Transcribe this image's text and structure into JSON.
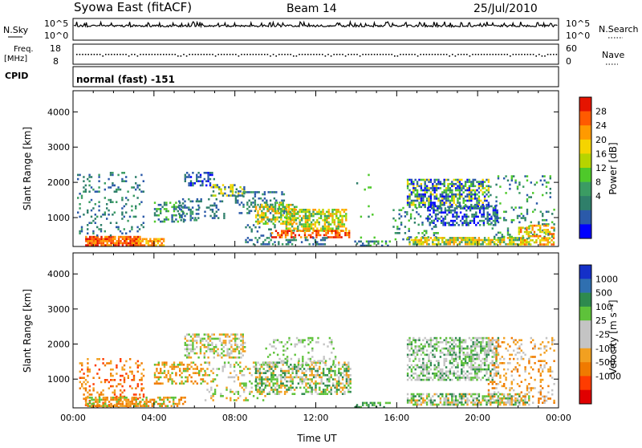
{
  "header": {
    "station": "Syowa East (fitACF)",
    "beam": "Beam 14",
    "date": "25/Jul/2010"
  },
  "status_panels": {
    "nsky_label": "N.Sky",
    "nsky_ticks": [
      "10^5",
      "10^0"
    ],
    "nsearch_label": "N.Search",
    "nsearch_ticks": [
      "10^5",
      "10^0"
    ],
    "freq_label_1": "Freq.",
    "freq_label_2": "[MHz]",
    "freq_ticks": [
      "18",
      "8"
    ],
    "nave_label": "Nave",
    "nave_ticks": [
      "60",
      "0"
    ],
    "cpid_label": "CPID",
    "cpid_value": "normal (fast) -151"
  },
  "chart_data": [
    {
      "type": "heatmap",
      "name": "power",
      "ylabel": "Slant Range [km]",
      "y_ticks": [
        "4000",
        "3000",
        "2000",
        "1000"
      ],
      "y_tick_values": [
        4000,
        3000,
        2000,
        1000
      ],
      "ylim": [
        180,
        4600
      ],
      "xlim_hours": [
        0,
        24
      ],
      "colorbar_label": "Power [dB]",
      "colorbar_ticks": [
        "28",
        "24",
        "20",
        "16",
        "12",
        "8",
        "4"
      ],
      "colorbar_colors": [
        "#e51400",
        "#ff5a00",
        "#ff9a00",
        "#f5d400",
        "#b6d400",
        "#4ec92a",
        "#3b9c63",
        "#2f7f6a",
        "#2b5aa9",
        "#0000ff"
      ],
      "regions": [
        {
          "t0": 0.6,
          "t1": 3.3,
          "r0": 230,
          "r1": 480,
          "c": [
            0,
            1,
            2
          ],
          "d": 0.9
        },
        {
          "t0": 0.2,
          "t1": 3.5,
          "r0": 480,
          "r1": 2300,
          "c": [
            7,
            8,
            6
          ],
          "d": 0.14
        },
        {
          "t0": 3.2,
          "t1": 4.5,
          "r0": 230,
          "r1": 420,
          "c": [
            1,
            2,
            3
          ],
          "d": 0.75
        },
        {
          "t0": 4.0,
          "t1": 5.5,
          "r0": 900,
          "r1": 1450,
          "c": [
            8,
            7,
            5
          ],
          "d": 0.42
        },
        {
          "t0": 5.5,
          "t1": 7.0,
          "r0": 1900,
          "r1": 2300,
          "c": [
            8,
            7,
            9
          ],
          "d": 0.5
        },
        {
          "t0": 5.2,
          "t1": 6.2,
          "r0": 900,
          "r1": 1550,
          "c": [
            8,
            7,
            6
          ],
          "d": 0.4
        },
        {
          "t0": 6.8,
          "t1": 8.5,
          "r0": 1600,
          "r1": 1950,
          "c": [
            7,
            8,
            3,
            4
          ],
          "d": 0.55
        },
        {
          "t0": 6.0,
          "t1": 7.5,
          "r0": 1000,
          "r1": 1550,
          "c": [
            8,
            7
          ],
          "d": 0.22
        },
        {
          "t0": 8.0,
          "t1": 10.5,
          "r0": 1100,
          "r1": 1750,
          "c": [
            8,
            7,
            6
          ],
          "d": 0.3
        },
        {
          "t0": 8.5,
          "t1": 10.0,
          "r0": 500,
          "r1": 1050,
          "c": [
            8,
            7
          ],
          "d": 0.15
        },
        {
          "t0": 9.0,
          "t1": 11.0,
          "r0": 800,
          "r1": 1450,
          "c": [
            5,
            3,
            2,
            6
          ],
          "d": 0.55
        },
        {
          "t0": 10.5,
          "t1": 13.5,
          "r0": 650,
          "r1": 1250,
          "c": [
            3,
            2,
            4,
            6,
            5
          ],
          "d": 0.7
        },
        {
          "t0": 9.8,
          "t1": 13.7,
          "r0": 450,
          "r1": 650,
          "c": [
            1,
            2,
            0
          ],
          "d": 0.55
        },
        {
          "t0": 8.5,
          "t1": 12.5,
          "r0": 250,
          "r1": 450,
          "c": [
            8,
            7,
            6
          ],
          "d": 0.35
        },
        {
          "t0": 13.9,
          "t1": 15.7,
          "r0": 230,
          "r1": 350,
          "c": [
            7,
            8,
            5
          ],
          "d": 0.5
        },
        {
          "t0": 14.0,
          "t1": 15.0,
          "r0": 350,
          "r1": 2300,
          "c": [
            7,
            5
          ],
          "d": 0.04
        },
        {
          "t0": 15.8,
          "t1": 18.0,
          "r0": 300,
          "r1": 1300,
          "c": [
            8,
            7,
            6,
            5
          ],
          "d": 0.2
        },
        {
          "t0": 16.5,
          "t1": 20.5,
          "r0": 1300,
          "r1": 2100,
          "c": [
            8,
            9,
            7,
            5,
            3
          ],
          "d": 0.6
        },
        {
          "t0": 17.5,
          "t1": 21.0,
          "r0": 800,
          "r1": 1350,
          "c": [
            8,
            7,
            9,
            6
          ],
          "d": 0.5
        },
        {
          "t0": 16.5,
          "t1": 22.5,
          "r0": 250,
          "r1": 450,
          "c": [
            3,
            2,
            4,
            6
          ],
          "d": 0.75
        },
        {
          "t0": 20.5,
          "t1": 23.8,
          "r0": 400,
          "r1": 2200,
          "c": [
            8,
            7,
            6,
            5
          ],
          "d": 0.12
        },
        {
          "t0": 22.0,
          "t1": 23.8,
          "r0": 230,
          "r1": 800,
          "c": [
            2,
            1,
            3,
            4
          ],
          "d": 0.5
        }
      ]
    },
    {
      "type": "heatmap",
      "name": "velocity",
      "ylabel": "Slant Range [km]",
      "y_ticks": [
        "4000",
        "3000",
        "2000",
        "1000"
      ],
      "y_tick_values": [
        4000,
        3000,
        2000,
        1000
      ],
      "ylim": [
        180,
        4600
      ],
      "xlim_hours": [
        0,
        24
      ],
      "x_ticks": [
        "00:00",
        "04:00",
        "08:00",
        "12:00",
        "16:00",
        "20:00",
        "00:00"
      ],
      "x_tick_values": [
        0,
        4,
        8,
        12,
        16,
        20,
        24
      ],
      "xlabel": "Time UT",
      "colorbar_label": "Velocity [m s⁻¹]",
      "colorbar_ticks": [
        "1000",
        "500",
        "100",
        "25",
        "-25",
        "-100",
        "-500",
        "-1000"
      ],
      "colorbar_colors": [
        "#1530c8",
        "#2f6fb0",
        "#2e8a4e",
        "#5ec23a",
        "#c4c4c4",
        "#c4c4c4",
        "#f2a020",
        "#f07a00",
        "#ff3c00",
        "#e00000"
      ],
      "regions": [
        {
          "t0": 0.3,
          "t1": 3.5,
          "r0": 230,
          "r1": 1600,
          "c": [
            7,
            6,
            8
          ],
          "d": 0.22
        },
        {
          "t0": 0.6,
          "t1": 3.3,
          "r0": 230,
          "r1": 500,
          "c": [
            6,
            7,
            3
          ],
          "d": 0.7
        },
        {
          "t0": 3.3,
          "t1": 5.5,
          "r0": 230,
          "r1": 500,
          "c": [
            6,
            3,
            7
          ],
          "d": 0.55
        },
        {
          "t0": 4.0,
          "t1": 6.5,
          "r0": 900,
          "r1": 1500,
          "c": [
            7,
            6,
            3
          ],
          "d": 0.35
        },
        {
          "t0": 5.5,
          "t1": 8.5,
          "r0": 1600,
          "r1": 2300,
          "c": [
            4,
            3,
            6
          ],
          "d": 0.45
        },
        {
          "t0": 6.5,
          "t1": 9.5,
          "r0": 400,
          "r1": 1500,
          "c": [
            3,
            6,
            4
          ],
          "d": 0.22
        },
        {
          "t0": 9.0,
          "t1": 13.7,
          "r0": 600,
          "r1": 1500,
          "c": [
            3,
            2,
            4,
            6
          ],
          "d": 0.55
        },
        {
          "t0": 9.5,
          "t1": 13.0,
          "r0": 1400,
          "r1": 2200,
          "c": [
            4,
            3
          ],
          "d": 0.18
        },
        {
          "t0": 13.9,
          "t1": 15.7,
          "r0": 230,
          "r1": 350,
          "c": [
            3,
            2
          ],
          "d": 0.45
        },
        {
          "t0": 16.5,
          "t1": 21.0,
          "r0": 1000,
          "r1": 2200,
          "c": [
            4,
            4,
            3,
            2
          ],
          "d": 0.55
        },
        {
          "t0": 16.5,
          "t1": 22.5,
          "r0": 300,
          "r1": 600,
          "c": [
            2,
            3,
            4,
            6
          ],
          "d": 0.65
        },
        {
          "t0": 20.5,
          "t1": 23.8,
          "r0": 300,
          "r1": 2200,
          "c": [
            6,
            7,
            4
          ],
          "d": 0.22
        }
      ]
    }
  ]
}
